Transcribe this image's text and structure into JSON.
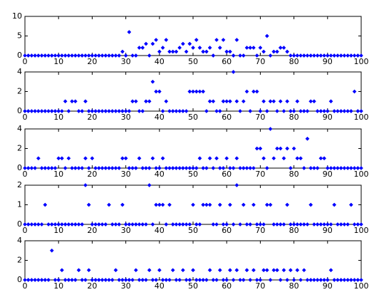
{
  "chart_data": [
    {
      "type": "scatter",
      "color": "#0000ff",
      "marker": "diamond",
      "x": [
        0,
        1,
        2,
        3,
        4,
        5,
        6,
        7,
        8,
        9,
        10,
        11,
        12,
        13,
        14,
        15,
        16,
        17,
        18,
        19,
        20,
        21,
        22,
        23,
        24,
        25,
        26,
        27,
        28,
        29,
        30,
        31,
        32,
        33,
        34,
        35,
        36,
        37,
        38,
        39,
        40,
        41,
        42,
        43,
        44,
        45,
        46,
        47,
        48,
        49,
        50,
        51,
        52,
        53,
        54,
        55,
        56,
        57,
        58,
        59,
        60,
        61,
        62,
        63,
        64,
        65,
        66,
        67,
        68,
        69,
        70,
        71,
        72,
        73,
        74,
        75,
        76,
        77,
        78,
        79,
        80,
        81,
        82,
        83,
        84,
        85,
        86,
        87,
        88,
        89,
        90,
        91,
        92,
        93,
        94,
        95,
        96,
        97,
        98,
        99,
        100
      ],
      "values": [
        0,
        0,
        0,
        0,
        0,
        0,
        0,
        0,
        0,
        0,
        0,
        0,
        0,
        0,
        0,
        0,
        0,
        0,
        0,
        0,
        0,
        0,
        0,
        0,
        0,
        0,
        0,
        0,
        0,
        1,
        0,
        6,
        0,
        0,
        2,
        2,
        3,
        0,
        3,
        4,
        1,
        2,
        4,
        1,
        1,
        1,
        2,
        3,
        1,
        3,
        2,
        4,
        2,
        1,
        1,
        2,
        0,
        4,
        2,
        4,
        1,
        1,
        0,
        4,
        0,
        0,
        2,
        2,
        2,
        0,
        2,
        1,
        5,
        0,
        1,
        1,
        2,
        2,
        1,
        0,
        0,
        0,
        0,
        0,
        0,
        0,
        0,
        0,
        0,
        0,
        0,
        0,
        0,
        0,
        0,
        0,
        0,
        0,
        0,
        0,
        0
      ],
      "xlim": [
        0,
        100
      ],
      "ylim": [
        0,
        10
      ],
      "xticks": [
        0,
        10,
        20,
        30,
        40,
        50,
        60,
        70,
        80,
        90,
        100
      ],
      "yticks": [
        0,
        5,
        10
      ]
    },
    {
      "type": "scatter",
      "color": "#0000ff",
      "marker": "diamond",
      "x": [
        0,
        1,
        2,
        3,
        4,
        5,
        6,
        7,
        8,
        9,
        10,
        11,
        12,
        13,
        14,
        15,
        16,
        17,
        18,
        19,
        20,
        21,
        22,
        23,
        24,
        25,
        26,
        27,
        28,
        29,
        30,
        31,
        32,
        33,
        34,
        35,
        36,
        37,
        38,
        39,
        40,
        41,
        42,
        43,
        44,
        45,
        46,
        47,
        48,
        49,
        50,
        51,
        52,
        53,
        54,
        55,
        56,
        57,
        58,
        59,
        60,
        61,
        62,
        63,
        64,
        65,
        66,
        67,
        68,
        69,
        70,
        71,
        72,
        73,
        74,
        75,
        76,
        77,
        78,
        79,
        80,
        81,
        82,
        83,
        84,
        85,
        86,
        87,
        88,
        89,
        90,
        91,
        92,
        93,
        94,
        95,
        96,
        97,
        98,
        99,
        100
      ],
      "values": [
        0,
        0,
        0,
        0,
        0,
        0,
        0,
        0,
        0,
        0,
        0,
        0,
        1,
        0,
        1,
        1,
        0,
        0,
        1,
        0,
        0,
        0,
        0,
        0,
        0,
        0,
        0,
        0,
        0,
        0,
        0,
        0,
        1,
        1,
        0,
        0,
        1,
        1,
        3,
        2,
        2,
        0,
        1,
        0,
        0,
        0,
        0,
        0,
        0,
        2,
        2,
        2,
        2,
        2,
        0,
        1,
        1,
        0,
        0,
        1,
        1,
        1,
        4,
        1,
        0,
        1,
        2,
        0,
        2,
        2,
        0,
        1,
        0,
        1,
        1,
        0,
        1,
        0,
        1,
        0,
        0,
        1,
        0,
        0,
        0,
        1,
        1,
        0,
        0,
        0,
        0,
        1,
        0,
        0,
        0,
        0,
        0,
        0,
        2,
        0,
        0
      ],
      "xlim": [
        0,
        100
      ],
      "ylim": [
        0,
        4
      ],
      "xticks": [
        0,
        10,
        20,
        30,
        40,
        50,
        60,
        70,
        80,
        90,
        100
      ],
      "yticks": [
        0,
        2,
        4
      ]
    },
    {
      "type": "scatter",
      "color": "#0000ff",
      "marker": "diamond",
      "x": [
        0,
        1,
        2,
        3,
        4,
        5,
        6,
        7,
        8,
        9,
        10,
        11,
        12,
        13,
        14,
        15,
        16,
        17,
        18,
        19,
        20,
        21,
        22,
        23,
        24,
        25,
        26,
        27,
        28,
        29,
        30,
        31,
        32,
        33,
        34,
        35,
        36,
        37,
        38,
        39,
        40,
        41,
        42,
        43,
        44,
        45,
        46,
        47,
        48,
        49,
        50,
        51,
        52,
        53,
        54,
        55,
        56,
        57,
        58,
        59,
        60,
        61,
        62,
        63,
        64,
        65,
        66,
        67,
        68,
        69,
        70,
        71,
        72,
        73,
        74,
        75,
        76,
        77,
        78,
        79,
        80,
        81,
        82,
        83,
        84,
        85,
        86,
        87,
        88,
        89,
        90,
        91,
        92,
        93,
        94,
        95,
        96,
        97,
        98,
        99,
        100
      ],
      "values": [
        0,
        0,
        0,
        0,
        1,
        0,
        0,
        0,
        0,
        0,
        1,
        1,
        0,
        1,
        0,
        0,
        0,
        0,
        1,
        0,
        1,
        0,
        0,
        0,
        0,
        0,
        0,
        0,
        0,
        1,
        1,
        0,
        0,
        0,
        1,
        0,
        0,
        0,
        1,
        0,
        0,
        1,
        0,
        0,
        0,
        0,
        0,
        0,
        0,
        0,
        0,
        0,
        1,
        0,
        0,
        1,
        0,
        1,
        0,
        0,
        1,
        0,
        0,
        1,
        0,
        0,
        0,
        0,
        0,
        2,
        2,
        1,
        0,
        4,
        1,
        2,
        2,
        1,
        2,
        0,
        2,
        1,
        1,
        0,
        3,
        0,
        0,
        0,
        1,
        1,
        0,
        0,
        0,
        0,
        0,
        0,
        0,
        0,
        0,
        0,
        0
      ],
      "xlim": [
        0,
        100
      ],
      "ylim": [
        0,
        4
      ],
      "xticks": [
        0,
        10,
        20,
        30,
        40,
        50,
        60,
        70,
        80,
        90,
        100
      ],
      "yticks": [
        0,
        2,
        4
      ]
    },
    {
      "type": "scatter",
      "color": "#0000ff",
      "marker": "diamond",
      "x": [
        0,
        1,
        2,
        3,
        4,
        5,
        6,
        7,
        8,
        9,
        10,
        11,
        12,
        13,
        14,
        15,
        16,
        17,
        18,
        19,
        20,
        21,
        22,
        23,
        24,
        25,
        26,
        27,
        28,
        29,
        30,
        31,
        32,
        33,
        34,
        35,
        36,
        37,
        38,
        39,
        40,
        41,
        42,
        43,
        44,
        45,
        46,
        47,
        48,
        49,
        50,
        51,
        52,
        53,
        54,
        55,
        56,
        57,
        58,
        59,
        60,
        61,
        62,
        63,
        64,
        65,
        66,
        67,
        68,
        69,
        70,
        71,
        72,
        73,
        74,
        75,
        76,
        77,
        78,
        79,
        80,
        81,
        82,
        83,
        84,
        85,
        86,
        87,
        88,
        89,
        90,
        91,
        92,
        93,
        94,
        95,
        96,
        97,
        98,
        99,
        100
      ],
      "values": [
        0,
        0,
        0,
        0,
        0,
        0,
        1,
        0,
        0,
        0,
        0,
        0,
        0,
        0,
        0,
        0,
        0,
        0,
        2,
        1,
        0,
        0,
        0,
        0,
        0,
        1,
        0,
        0,
        0,
        1,
        0,
        0,
        0,
        0,
        0,
        0,
        0,
        2,
        0,
        1,
        1,
        1,
        0,
        1,
        0,
        0,
        0,
        0,
        0,
        0,
        1,
        0,
        0,
        1,
        1,
        1,
        0,
        0,
        1,
        0,
        0,
        1,
        0,
        2,
        0,
        1,
        0,
        0,
        1,
        0,
        0,
        0,
        1,
        1,
        0,
        0,
        0,
        0,
        1,
        0,
        0,
        0,
        0,
        0,
        0,
        1,
        0,
        0,
        0,
        0,
        0,
        0,
        1,
        0,
        0,
        0,
        0,
        1,
        0,
        0,
        0
      ],
      "xlim": [
        0,
        100
      ],
      "ylim": [
        0,
        2
      ],
      "xticks": [
        0,
        10,
        20,
        30,
        40,
        50,
        60,
        70,
        80,
        90,
        100
      ],
      "yticks": [
        0,
        1,
        2
      ]
    },
    {
      "type": "scatter",
      "color": "#0000ff",
      "marker": "diamond",
      "x": [
        0,
        1,
        2,
        3,
        4,
        5,
        6,
        7,
        8,
        9,
        10,
        11,
        12,
        13,
        14,
        15,
        16,
        17,
        18,
        19,
        20,
        21,
        22,
        23,
        24,
        25,
        26,
        27,
        28,
        29,
        30,
        31,
        32,
        33,
        34,
        35,
        36,
        37,
        38,
        39,
        40,
        41,
        42,
        43,
        44,
        45,
        46,
        47,
        48,
        49,
        50,
        51,
        52,
        53,
        54,
        55,
        56,
        57,
        58,
        59,
        60,
        61,
        62,
        63,
        64,
        65,
        66,
        67,
        68,
        69,
        70,
        71,
        72,
        73,
        74,
        75,
        76,
        77,
        78,
        79,
        80,
        81,
        82,
        83,
        84,
        85,
        86,
        87,
        88,
        89,
        90,
        91,
        92,
        93,
        94,
        95,
        96,
        97,
        98,
        99,
        100
      ],
      "values": [
        0,
        0,
        0,
        0,
        0,
        0,
        0,
        0,
        3,
        0,
        0,
        1,
        0,
        0,
        0,
        0,
        1,
        0,
        0,
        1,
        0,
        0,
        0,
        0,
        0,
        0,
        0,
        1,
        0,
        0,
        0,
        0,
        0,
        1,
        0,
        0,
        0,
        1,
        0,
        0,
        1,
        0,
        0,
        0,
        1,
        0,
        0,
        1,
        0,
        0,
        1,
        0,
        0,
        0,
        0,
        1,
        0,
        0,
        1,
        0,
        0,
        1,
        0,
        1,
        0,
        0,
        1,
        0,
        1,
        0,
        0,
        1,
        1,
        0,
        1,
        1,
        0,
        1,
        0,
        1,
        0,
        1,
        0,
        1,
        0,
        0,
        0,
        0,
        0,
        0,
        0,
        1,
        0,
        0,
        0,
        0,
        0,
        0,
        0,
        0,
        0
      ],
      "xlim": [
        0,
        100
      ],
      "ylim": [
        0,
        4
      ],
      "xticks": [
        0,
        10,
        20,
        30,
        40,
        50,
        60,
        70,
        80,
        90,
        100
      ],
      "yticks": [
        0,
        2,
        4
      ]
    }
  ]
}
